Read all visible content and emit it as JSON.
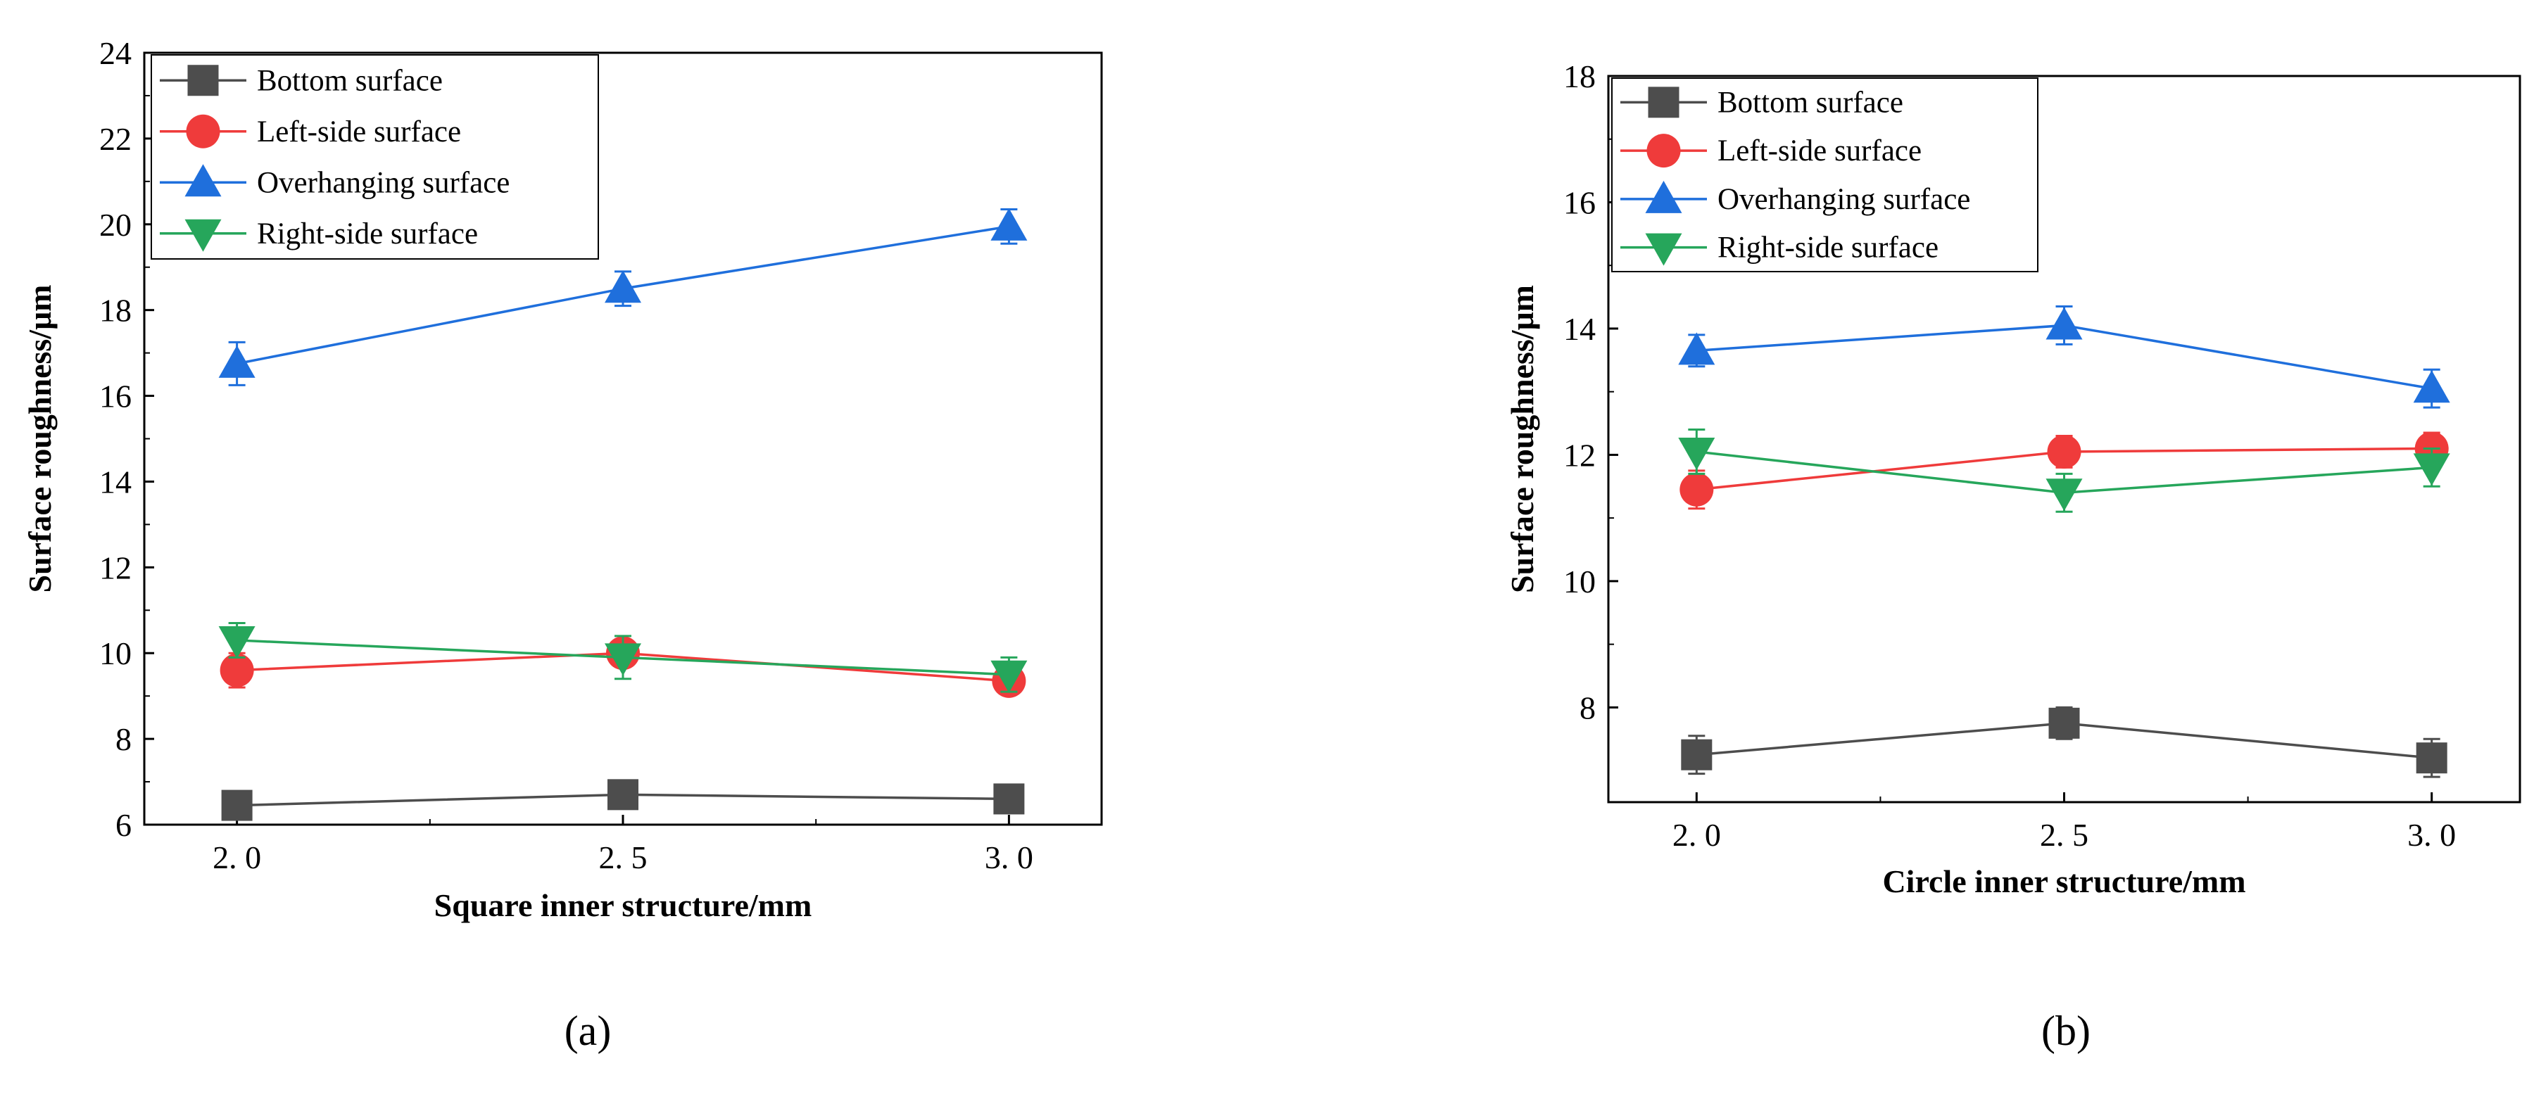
{
  "chart_data": [
    {
      "type": "line",
      "panel_label": "(a)",
      "xlabel": "Square inner structure/mm",
      "ylabel": "Surface roughness/μm",
      "x": [
        2.0,
        2.5,
        3.0
      ],
      "x_tick_labels": [
        "2. 0",
        "2. 5",
        "3. 0"
      ],
      "xlim": [
        1.88,
        3.12
      ],
      "ylim": [
        6,
        24
      ],
      "y_ticks": [
        6,
        8,
        10,
        12,
        14,
        16,
        18,
        20,
        22,
        24
      ],
      "legend_position": "top-left",
      "grid": false,
      "series": [
        {
          "name": "Bottom surface",
          "marker": "square",
          "color": "#4d4d4d",
          "values": [
            6.45,
            6.7,
            6.6
          ],
          "errors": [
            0.15,
            0.3,
            0.25
          ]
        },
        {
          "name": "Left-side surface",
          "marker": "circle",
          "color": "#ef3b3b",
          "values": [
            9.6,
            10.0,
            9.35
          ],
          "errors": [
            0.4,
            0.3,
            0.3
          ]
        },
        {
          "name": "Overhanging surface",
          "marker": "triangle-up",
          "color": "#1f6fdc",
          "values": [
            16.75,
            18.5,
            19.95
          ],
          "errors": [
            0.5,
            0.4,
            0.4
          ]
        },
        {
          "name": "Right-side surface",
          "marker": "triangle-down",
          "color": "#26a65b",
          "values": [
            10.3,
            9.9,
            9.5
          ],
          "errors": [
            0.4,
            0.5,
            0.4
          ]
        }
      ]
    },
    {
      "type": "line",
      "panel_label": "(b)",
      "xlabel": "Circle inner structure/mm",
      "ylabel": "Surface roughness/μm",
      "x": [
        2.0,
        2.5,
        3.0
      ],
      "x_tick_labels": [
        "2. 0",
        "2. 5",
        "3. 0"
      ],
      "xlim": [
        1.88,
        3.12
      ],
      "ylim": [
        6.5,
        18
      ],
      "y_ticks": [
        8,
        10,
        12,
        14,
        16,
        18
      ],
      "legend_position": "top-left",
      "grid": false,
      "series": [
        {
          "name": "Bottom surface",
          "marker": "square",
          "color": "#4d4d4d",
          "values": [
            7.25,
            7.75,
            7.2
          ],
          "errors": [
            0.3,
            0.25,
            0.3
          ]
        },
        {
          "name": "Left-side surface",
          "marker": "circle",
          "color": "#ef3b3b",
          "values": [
            11.45,
            12.05,
            12.1
          ],
          "errors": [
            0.3,
            0.25,
            0.25
          ]
        },
        {
          "name": "Overhanging surface",
          "marker": "triangle-up",
          "color": "#1f6fdc",
          "values": [
            13.65,
            14.05,
            13.05
          ],
          "errors": [
            0.25,
            0.3,
            0.3
          ]
        },
        {
          "name": "Right-side surface",
          "marker": "triangle-down",
          "color": "#26a65b",
          "values": [
            12.05,
            11.4,
            11.8
          ],
          "errors": [
            0.35,
            0.3,
            0.3
          ]
        }
      ]
    }
  ]
}
